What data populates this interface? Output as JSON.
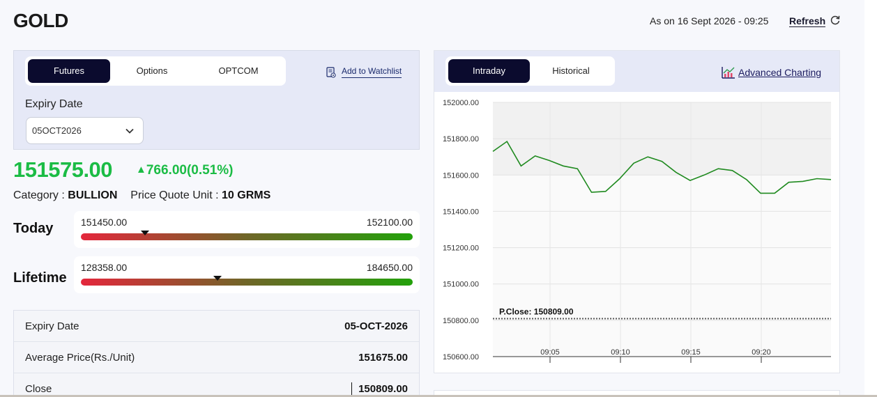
{
  "header": {
    "title": "GOLD",
    "as_on": "As on 16 Sept 2026 - 09:25",
    "refresh_label": "Refresh"
  },
  "left": {
    "tabs": [
      "Futures",
      "Options",
      "OPTCOM"
    ],
    "active_tab": "Futures",
    "watchlist_label": "Add to Watchlist",
    "expiry_label": "Expiry Date",
    "expiry_value": "05OCT2026",
    "price": "151575.00",
    "change": "766.00(0.51%)",
    "category_label": "Category : ",
    "category_value": "BULLION",
    "pqu_label": "Price Quote Unit : ",
    "pqu_value": "10 GRMS",
    "today": {
      "label": "Today",
      "low": "151450.00",
      "high": "152100.00",
      "current": 151575.0
    },
    "lifetime": {
      "label": "Lifetime",
      "low": "128358.00",
      "high": "184650.00",
      "current": 151575.0
    },
    "info_rows": [
      {
        "key": "Expiry Date",
        "value": "05-OCT-2026"
      },
      {
        "key": "Average Price(Rs./Unit)",
        "value": "151675.00"
      },
      {
        "key": "Close",
        "value": "150809.00"
      }
    ]
  },
  "right": {
    "tabs": [
      "Intraday",
      "Historical"
    ],
    "active_tab": "Intraday",
    "advanced_label": "Advanced Charting"
  },
  "colors": {
    "accent_dark": "#0b0b2e",
    "positive": "#1bbc45",
    "chart_line": "#1f8a1f",
    "bar_low": "#e4273c",
    "bar_high": "#23a10b"
  },
  "icons": {
    "refresh": "refresh-icon",
    "watchlist": "watchlist-icon",
    "expiry_dropdown": "chevron-down-icon",
    "advanced_charting": "chart-icon",
    "change": "up-triangle-icon"
  },
  "chart_data": {
    "type": "line",
    "yticks": [
      "152000.00",
      "151800.00",
      "151600.00",
      "151400.00",
      "151200.00",
      "151000.00",
      "150800.00",
      "150600.00"
    ],
    "xticks": [
      "09:05",
      "09:10",
      "09:15",
      "09:20"
    ],
    "ylim": [
      150600,
      152000
    ],
    "pclose": 150809,
    "pclose_label": "P.Close: 150809.00",
    "series": [
      {
        "values": [
          151730,
          151785,
          151650,
          151705,
          151680,
          151650,
          151635,
          151505,
          151510,
          151580,
          151665,
          151700,
          151675,
          151615,
          151570,
          151600,
          151635,
          151625,
          151575,
          151500,
          151500,
          151560,
          151565,
          151580,
          151575
        ]
      }
    ]
  }
}
